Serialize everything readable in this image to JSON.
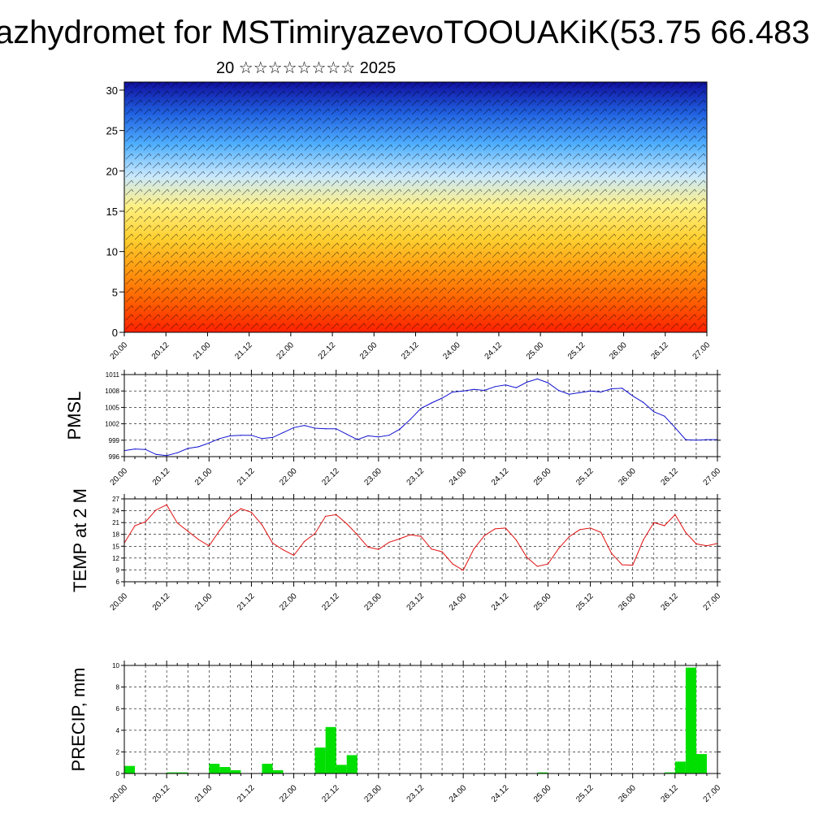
{
  "header": {
    "title": "azhydromet for MSTimiryazevoTOOUAKiK(53.75 66.483",
    "subtitle": "20 ☆☆☆☆☆☆☆☆ 2025"
  },
  "colors": {
    "pmsl_line": "#1010d0",
    "temp_line": "#e01010",
    "precip_bar": "#00e000",
    "xsect_top": "#1010a0",
    "xsect_bottom": "#ff2000"
  },
  "time_labels": [
    "20.00",
    "20.12",
    "21.00",
    "21.12",
    "22.00",
    "22.12",
    "23.00",
    "23.12",
    "24.00",
    "24.12",
    "25.00",
    "25.12",
    "26.00",
    "26.12",
    "27.00"
  ],
  "chart_data": [
    {
      "type": "heatmap",
      "title": "",
      "ylabel": "",
      "ylim": [
        0,
        31
      ],
      "yticks": [
        0,
        5,
        10,
        15,
        20,
        25,
        30
      ],
      "x_tick_labels": [
        "20.00",
        "20.12",
        "21.00",
        "21.12",
        "22.00",
        "22.12",
        "23.00",
        "23.12",
        "24.00",
        "24.12",
        "25.00",
        "25.12",
        "26.00",
        "26.12",
        "27.00"
      ],
      "gradient": [
        "#ff2000",
        "#ff6000",
        "#ff9a10",
        "#ffd030",
        "#fff080",
        "#c8e8ff",
        "#50b0ff",
        "#2060e0",
        "#1010a0"
      ],
      "overlay": "wind barbs"
    },
    {
      "type": "line",
      "ylabel": "PMSL",
      "ylim": [
        996,
        1011
      ],
      "yticks": [
        996,
        999,
        1002,
        1005,
        1008,
        1011
      ],
      "x_tick_labels": [
        "20.00",
        "20.12",
        "21.00",
        "21.12",
        "22.00",
        "22.12",
        "23.00",
        "23.12",
        "24.00",
        "24.12",
        "25.00",
        "25.12",
        "26.00",
        "26.12",
        "27.00"
      ],
      "x_hours": [
        0,
        3,
        6,
        9,
        12,
        15,
        18,
        21,
        24,
        27,
        30,
        33,
        36,
        39,
        42,
        45,
        48,
        51,
        54,
        57,
        60,
        63,
        66,
        69,
        72,
        75,
        78,
        81,
        84,
        87,
        90,
        93,
        96,
        99,
        102,
        105,
        108,
        111,
        114,
        117,
        120,
        123,
        126,
        129,
        132,
        135,
        138,
        141,
        144,
        147,
        150,
        153,
        156,
        159,
        162,
        165,
        168
      ],
      "values": [
        997.1,
        997.4,
        997.3,
        996.4,
        996.2,
        996.7,
        997.5,
        997.8,
        998.5,
        999.3,
        999.8,
        999.9,
        999.9,
        999.3,
        999.5,
        1000.4,
        1001.3,
        1001.7,
        1001.2,
        1001.1,
        1001.1,
        1000.1,
        999.1,
        999.8,
        999.6,
        999.9,
        1001.0,
        1002.8,
        1004.8,
        1005.8,
        1006.7,
        1007.8,
        1008.0,
        1008.3,
        1008.1,
        1008.8,
        1009.1,
        1008.6,
        1009.6,
        1010.2,
        1009.5,
        1008.1,
        1007.4,
        1007.7,
        1008.0,
        1007.8,
        1008.4,
        1008.5,
        1007.1,
        1005.9,
        1004.2,
        1003.4,
        1001.3,
        999.1,
        999.0,
        999.1,
        999.1
      ]
    },
    {
      "type": "line",
      "ylabel": "TEMP at 2 M",
      "ylim": [
        6,
        27
      ],
      "yticks": [
        6,
        9,
        12,
        15,
        18,
        21,
        24,
        27
      ],
      "x_tick_labels": [
        "20.00",
        "20.12",
        "21.00",
        "21.12",
        "22.00",
        "22.12",
        "23.00",
        "23.12",
        "24.00",
        "24.12",
        "25.00",
        "25.12",
        "26.00",
        "26.12",
        "27.00"
      ],
      "x_hours": [
        0,
        3,
        6,
        9,
        12,
        15,
        18,
        21,
        24,
        27,
        30,
        33,
        36,
        39,
        42,
        45,
        48,
        51,
        54,
        57,
        60,
        63,
        66,
        69,
        72,
        75,
        78,
        81,
        84,
        87,
        90,
        93,
        96,
        99,
        102,
        105,
        108,
        111,
        114,
        117,
        120,
        123,
        126,
        129,
        132,
        135,
        138,
        141,
        144,
        147,
        150,
        153,
        156,
        159,
        162,
        165,
        168
      ],
      "values": [
        15.8,
        20.2,
        21.2,
        24.2,
        25.5,
        20.9,
        18.8,
        16.7,
        15.1,
        19.0,
        22.5,
        24.5,
        23.6,
        20.4,
        15.8,
        14.1,
        12.7,
        16.2,
        18.2,
        22.6,
        23.0,
        20.7,
        17.9,
        14.8,
        14.2,
        16.0,
        16.9,
        17.9,
        17.5,
        14.3,
        13.6,
        10.5,
        8.9,
        14.3,
        17.7,
        19.4,
        19.6,
        16.6,
        12.2,
        9.9,
        10.5,
        14.4,
        17.4,
        19.2,
        19.6,
        18.5,
        13.2,
        10.3,
        10.2,
        16.6,
        21.0,
        20.2,
        23.0,
        18.5,
        15.6,
        15.1,
        15.7
      ]
    },
    {
      "type": "bar",
      "ylabel": "PRECIP, mm",
      "ylim": [
        0,
        10
      ],
      "yticks": [
        0,
        2,
        4,
        6,
        8,
        10
      ],
      "x_tick_labels": [
        "20.00",
        "20.12",
        "21.00",
        "21.12",
        "22.00",
        "22.12",
        "23.00",
        "23.12",
        "24.00",
        "24.12",
        "25.00",
        "25.12",
        "26.00",
        "26.12",
        "27.00"
      ],
      "x_hours": [
        3,
        6,
        9,
        12,
        15,
        18,
        21,
        24,
        27,
        30,
        33,
        36,
        39,
        42,
        45,
        48,
        51,
        54,
        57,
        60,
        63,
        66,
        69,
        72,
        75,
        78,
        81,
        84,
        87,
        90,
        93,
        96,
        99,
        102,
        105,
        108,
        111,
        114,
        117,
        120,
        123,
        126,
        129,
        132,
        135,
        138,
        141,
        144,
        147,
        150,
        153,
        156,
        159,
        162,
        165,
        168
      ],
      "values": [
        0.7,
        0.0,
        0.0,
        0.0,
        0.1,
        0.1,
        0.0,
        0.0,
        0.9,
        0.6,
        0.3,
        0.0,
        0.0,
        0.9,
        0.3,
        0.0,
        0.0,
        0.0,
        2.4,
        4.3,
        0.8,
        1.7,
        0.0,
        0.0,
        0.0,
        0.0,
        0.0,
        0.0,
        0.0,
        0.0,
        0.0,
        0.0,
        0.0,
        0.0,
        0.0,
        0.0,
        0.0,
        0.0,
        0.0,
        0.1,
        0.0,
        0.0,
        0.0,
        0.0,
        0.0,
        0.0,
        0.0,
        0.0,
        0.0,
        0.0,
        0.0,
        0.1,
        1.1,
        9.8,
        1.8,
        0.0
      ]
    }
  ]
}
